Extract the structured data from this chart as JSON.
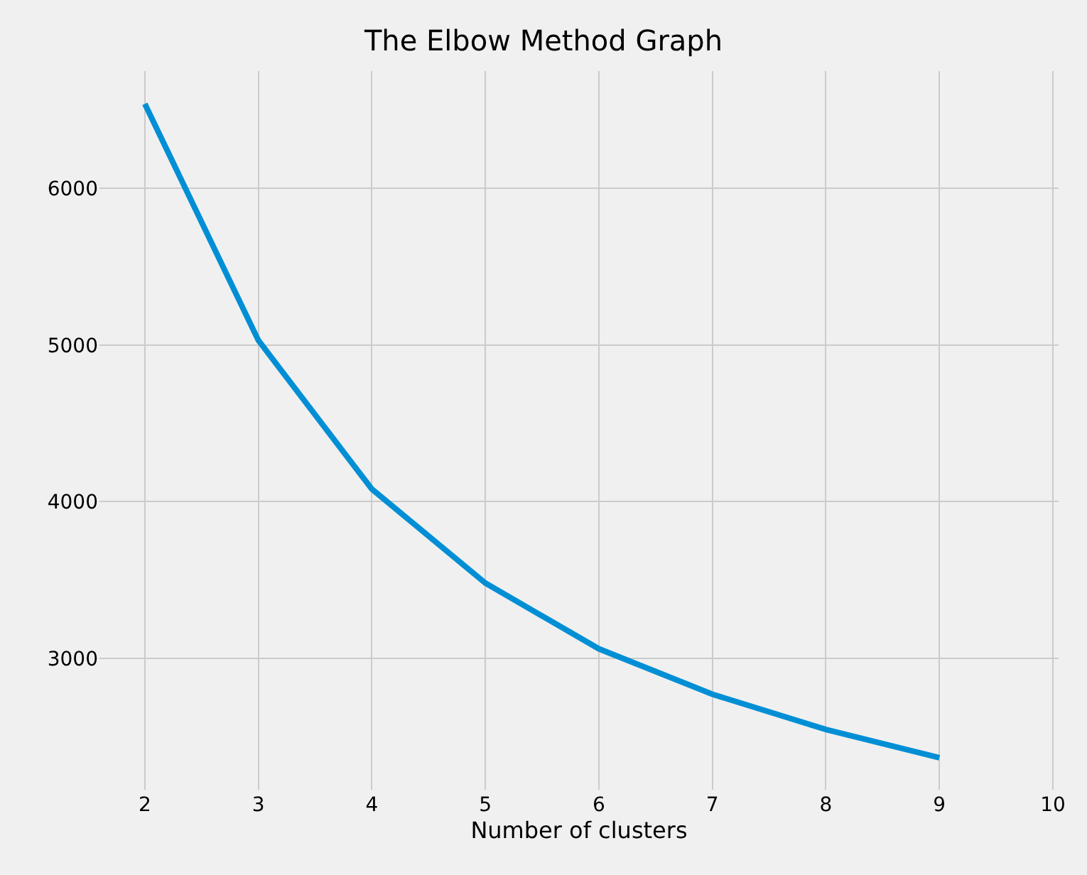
{
  "chart_data": {
    "type": "line",
    "title": "The Elbow Method Graph",
    "xlabel": "Number of clusters",
    "x": [
      2,
      3,
      4,
      5,
      6,
      7,
      8,
      9
    ],
    "series": [
      {
        "color": "#008fd5",
        "values": [
          6540,
          5030,
          4080,
          3480,
          3060,
          2770,
          2545,
          2365
        ]
      }
    ],
    "xlim": [
      1.6,
      10.05
    ],
    "ylim": [
      2160,
      6750
    ],
    "xticks": [
      2,
      3,
      4,
      5,
      6,
      7,
      8,
      9,
      10
    ],
    "yticks": [
      3000,
      4000,
      5000,
      6000
    ],
    "grid": true
  }
}
